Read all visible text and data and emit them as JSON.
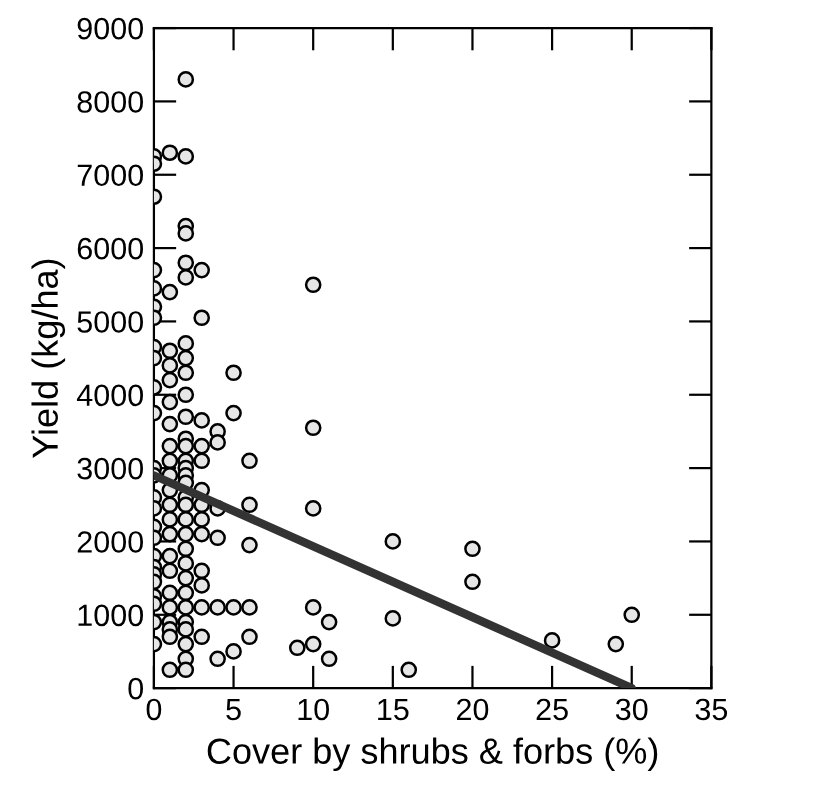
{
  "chart_data": {
    "type": "scatter",
    "xlabel": "Cover by shrubs & forbs (%)",
    "ylabel": "Yield (kg/ha)",
    "xlim": [
      0,
      35
    ],
    "ylim": [
      0,
      9000
    ],
    "xticks": [
      0,
      5,
      10,
      15,
      20,
      25,
      30,
      35
    ],
    "yticks": [
      0,
      1000,
      2000,
      3000,
      4000,
      5000,
      6000,
      7000,
      8000,
      9000
    ],
    "grid": false,
    "legend": false,
    "series": [
      {
        "marker": "circle",
        "color": "#000000",
        "x": [
          0,
          0,
          0,
          0,
          0,
          0,
          0,
          0,
          0,
          0,
          0,
          0,
          0,
          0,
          0,
          0,
          0,
          0,
          0,
          0,
          0,
          0,
          0,
          0,
          0,
          1,
          1,
          1,
          1,
          1,
          1,
          1,
          1,
          1,
          1,
          1,
          1,
          1,
          1,
          1,
          1,
          1,
          1,
          1,
          1,
          1,
          1,
          2,
          2,
          2,
          2,
          2,
          2,
          2,
          2,
          2,
          2,
          2,
          2,
          2,
          2,
          2,
          2,
          2,
          2,
          2,
          2,
          2,
          2,
          2,
          2,
          2,
          2,
          2,
          2,
          2,
          2,
          2,
          3,
          3,
          3,
          3,
          3,
          3,
          3,
          3,
          3,
          3,
          3,
          3,
          3,
          4,
          4,
          4,
          4,
          4,
          4,
          5,
          5,
          5,
          5,
          6,
          6,
          6,
          6,
          6,
          9,
          10,
          10,
          10,
          10,
          10,
          11,
          11,
          15,
          15,
          16,
          20,
          20,
          25,
          29,
          30
        ],
        "values": [
          7250,
          7150,
          6700,
          5700,
          5450,
          5200,
          5050,
          4650,
          4500,
          4100,
          3750,
          3000,
          2900,
          2600,
          2450,
          2200,
          2050,
          1800,
          1650,
          1550,
          1450,
          1250,
          1150,
          900,
          600,
          7300,
          5400,
          4600,
          4400,
          4200,
          3900,
          3600,
          3300,
          3100,
          2900,
          2700,
          2500,
          2300,
          2100,
          1800,
          1600,
          1300,
          1100,
          900,
          800,
          700,
          250,
          8300,
          7250,
          6300,
          6200,
          5800,
          5600,
          4700,
          4500,
          4300,
          4000,
          3700,
          3400,
          3300,
          3100,
          3000,
          2900,
          2800,
          2600,
          2500,
          2300,
          2100,
          1900,
          1700,
          1500,
          1300,
          1100,
          900,
          800,
          600,
          400,
          250,
          5700,
          5050,
          3650,
          3300,
          3100,
          2700,
          2500,
          2300,
          2100,
          1600,
          1400,
          1100,
          700,
          3500,
          3350,
          2450,
          2050,
          1100,
          400,
          4300,
          3750,
          1100,
          500,
          3100,
          2500,
          1950,
          1100,
          700,
          550,
          5500,
          3550,
          2450,
          1100,
          600,
          900,
          400,
          2000,
          950,
          250,
          1900,
          1450,
          650,
          600,
          1000
        ]
      },
      {
        "type": "line",
        "marker": "none",
        "color": "#333333",
        "x": [
          0,
          30
        ],
        "values": [
          2900,
          0
        ]
      }
    ]
  }
}
